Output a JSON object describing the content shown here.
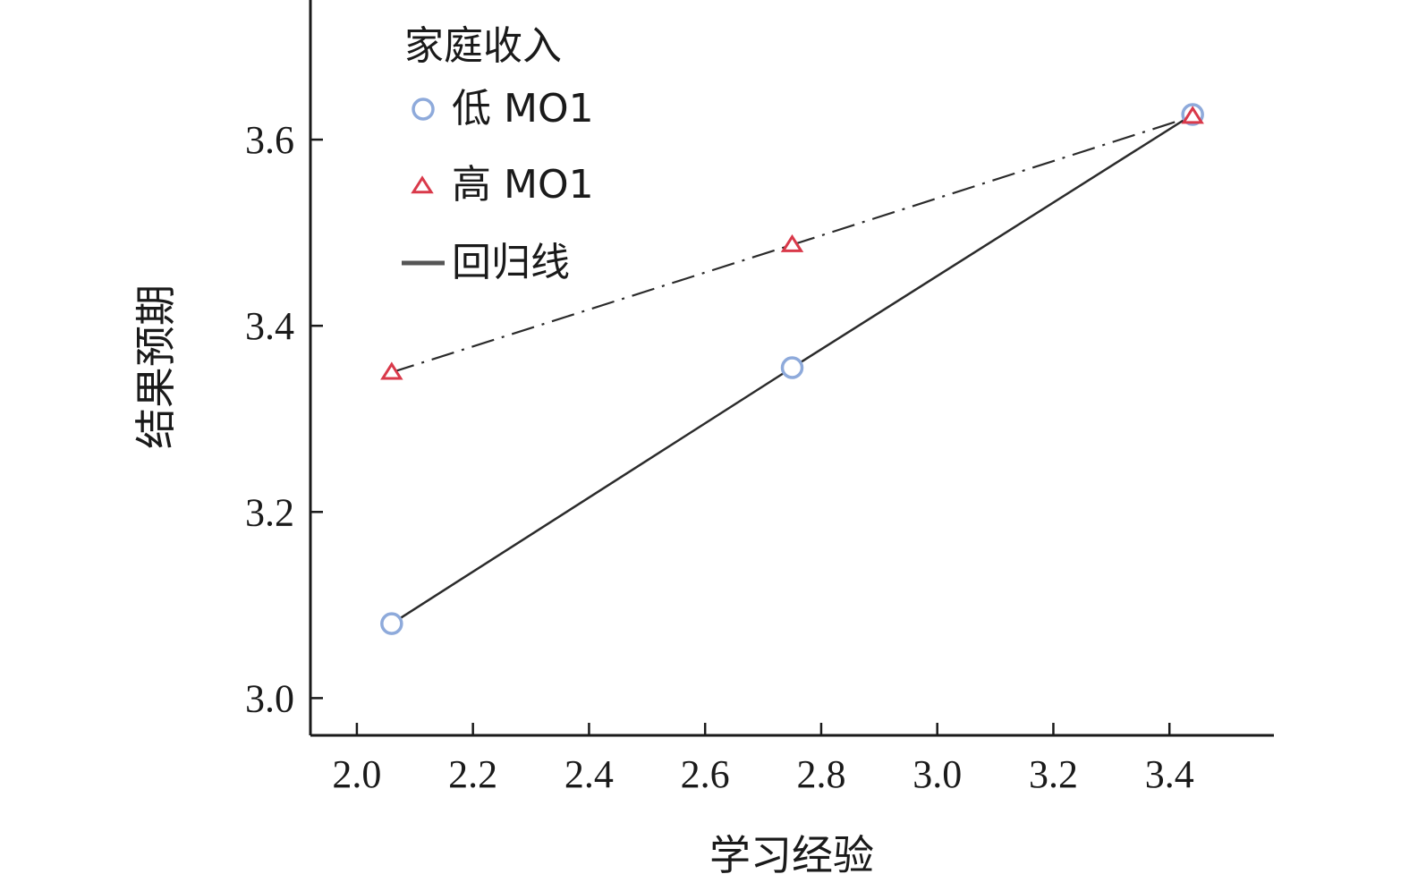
{
  "chart_data": {
    "type": "line",
    "title": "",
    "xlabel": "学习经验",
    "ylabel": "结果预期",
    "xlim": [
      1.92,
      3.58
    ],
    "ylim": [
      2.96,
      3.75
    ],
    "xticks": [
      2.0,
      2.2,
      2.4,
      2.6,
      2.8,
      3.0,
      3.2,
      3.4
    ],
    "yticks": [
      3.0,
      3.2,
      3.4,
      3.6
    ],
    "xtick_labels": [
      "2.0",
      "2.2",
      "2.4",
      "2.6",
      "2.8",
      "3.0",
      "3.2",
      "3.4"
    ],
    "ytick_labels": [
      "3.0",
      "3.2",
      "3.4",
      "3.6"
    ],
    "grid": false,
    "legend": {
      "title": "家庭收入",
      "placement": "top-left",
      "entries": [
        "低 MO1",
        "高 MO1",
        "回归线"
      ]
    },
    "series": [
      {
        "name": "低 MO1",
        "marker": "circle",
        "color": "#8eaadb",
        "line_style": "solid",
        "line_color": "#2b2b2b",
        "x": [
          2.06,
          2.75,
          3.44
        ],
        "y": [
          3.08,
          3.355,
          3.627
        ]
      },
      {
        "name": "高 MO1",
        "marker": "triangle",
        "color": "#d9394a",
        "line_style": "dashdot",
        "line_color": "#2b2b2b",
        "x": [
          2.06,
          2.75,
          3.44
        ],
        "y": [
          3.35,
          3.487,
          3.625
        ]
      }
    ],
    "regression_line_label": "回归线"
  }
}
